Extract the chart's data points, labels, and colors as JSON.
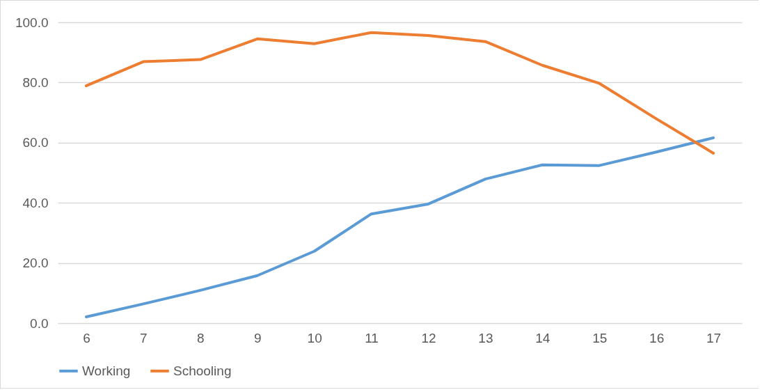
{
  "chart_data": {
    "type": "line",
    "categories": [
      "6",
      "7",
      "8",
      "9",
      "10",
      "11",
      "12",
      "13",
      "14",
      "15",
      "16",
      "17"
    ],
    "series": [
      {
        "name": "Working",
        "color": "#5b9bd5",
        "values": [
          2.1,
          6.4,
          10.9,
          15.8,
          23.9,
          36.3,
          39.6,
          47.9,
          52.6,
          52.4,
          56.9,
          61.6
        ]
      },
      {
        "name": "Schooling",
        "color": "#ed7d31",
        "values": [
          78.9,
          86.9,
          87.6,
          94.5,
          92.9,
          96.6,
          95.6,
          93.6,
          85.7,
          79.7,
          67.9,
          56.5
        ]
      }
    ],
    "ylim": [
      0,
      100
    ],
    "yticks": [
      {
        "value": 0,
        "label": "0.0"
      },
      {
        "value": 20,
        "label": "20.0"
      },
      {
        "value": 40,
        "label": "40.0"
      },
      {
        "value": 60,
        "label": "60.0"
      },
      {
        "value": 80,
        "label": "80.0"
      },
      {
        "value": 100,
        "label": "100.0"
      }
    ],
    "grid": "y",
    "legend": "bottom",
    "line_style": "solid",
    "marker": "none"
  }
}
